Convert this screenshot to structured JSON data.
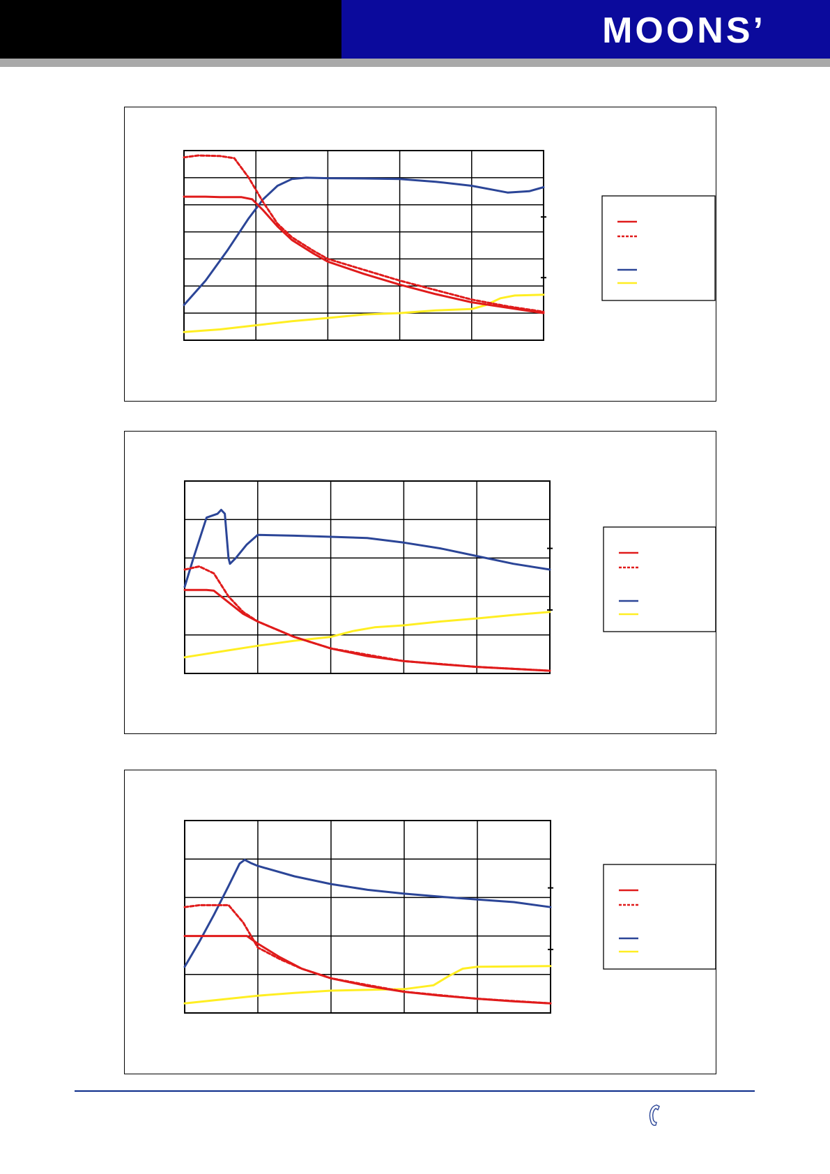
{
  "header": {
    "logo_text": "MOONS’",
    "colors": {
      "left_band": "#000000",
      "right_band": "#0b0a9c",
      "stripe": "#a9a9a9"
    }
  },
  "footer": {
    "icon": "phone-icon",
    "line_color": "#0a2a8a"
  },
  "series_colors": {
    "torque_solid": "#e01b1b",
    "torque_dashed": "#e01b1b",
    "power": "#2b4597",
    "current": "#ffee22"
  },
  "chart_data": [
    {
      "type": "line",
      "grid": true,
      "xlim": [
        0,
        5
      ],
      "ylim": [
        0,
        7
      ],
      "legend_placement": "right",
      "series": [
        {
          "style": "solid",
          "color": "#e01b1b",
          "points": [
            [
              0,
              5.3
            ],
            [
              0.3,
              5.3
            ],
            [
              0.5,
              5.28
            ],
            [
              0.8,
              5.28
            ],
            [
              0.95,
              5.2
            ],
            [
              1.1,
              4.8
            ],
            [
              1.3,
              4.2
            ],
            [
              1.5,
              3.7
            ],
            [
              1.8,
              3.2
            ],
            [
              2.0,
              2.9
            ],
            [
              2.5,
              2.45
            ],
            [
              3.0,
              2.05
            ],
            [
              3.5,
              1.7
            ],
            [
              4.0,
              1.4
            ],
            [
              4.5,
              1.2
            ],
            [
              5.0,
              1.0
            ]
          ]
        },
        {
          "style": "dashed",
          "color": "#e01b1b",
          "points": [
            [
              0,
              6.75
            ],
            [
              0.2,
              6.82
            ],
            [
              0.5,
              6.8
            ],
            [
              0.7,
              6.72
            ],
            [
              0.9,
              6.0
            ],
            [
              1.1,
              5.1
            ],
            [
              1.3,
              4.3
            ],
            [
              1.5,
              3.8
            ],
            [
              1.8,
              3.3
            ],
            [
              2.0,
              3.0
            ],
            [
              2.5,
              2.6
            ],
            [
              3.0,
              2.2
            ],
            [
              3.5,
              1.85
            ],
            [
              4.0,
              1.5
            ],
            [
              4.5,
              1.25
            ],
            [
              5.0,
              1.05
            ]
          ]
        },
        {
          "style": "solid",
          "color": "#2b4597",
          "points": [
            [
              0,
              1.3
            ],
            [
              0.3,
              2.2
            ],
            [
              0.6,
              3.3
            ],
            [
              0.9,
              4.5
            ],
            [
              1.1,
              5.2
            ],
            [
              1.3,
              5.7
            ],
            [
              1.5,
              5.95
            ],
            [
              1.7,
              6.0
            ],
            [
              2.0,
              5.98
            ],
            [
              2.5,
              5.97
            ],
            [
              3.0,
              5.95
            ],
            [
              3.5,
              5.85
            ],
            [
              4.0,
              5.7
            ],
            [
              4.3,
              5.55
            ],
            [
              4.5,
              5.45
            ],
            [
              4.8,
              5.5
            ],
            [
              5.0,
              5.65
            ]
          ]
        },
        {
          "style": "solid",
          "color": "#ffee22",
          "points": [
            [
              0,
              0.3
            ],
            [
              0.5,
              0.4
            ],
            [
              1.0,
              0.55
            ],
            [
              1.5,
              0.7
            ],
            [
              2.0,
              0.82
            ],
            [
              2.5,
              0.95
            ],
            [
              3.0,
              1.0
            ],
            [
              3.5,
              1.1
            ],
            [
              4.0,
              1.15
            ],
            [
              4.2,
              1.3
            ],
            [
              4.4,
              1.55
            ],
            [
              4.6,
              1.65
            ],
            [
              5.0,
              1.68
            ]
          ]
        }
      ]
    },
    {
      "type": "line",
      "grid": true,
      "xlim": [
        0,
        5
      ],
      "ylim": [
        0,
        5
      ],
      "legend_placement": "right",
      "series": [
        {
          "style": "solid",
          "color": "#e01b1b",
          "points": [
            [
              0,
              2.17
            ],
            [
              0.3,
              2.17
            ],
            [
              0.4,
              2.15
            ],
            [
              0.6,
              1.85
            ],
            [
              0.8,
              1.55
            ],
            [
              1.0,
              1.35
            ],
            [
              1.5,
              0.95
            ],
            [
              2.0,
              0.65
            ],
            [
              2.5,
              0.45
            ],
            [
              3.0,
              0.32
            ],
            [
              3.5,
              0.24
            ],
            [
              4.0,
              0.17
            ],
            [
              4.5,
              0.12
            ],
            [
              5.0,
              0.07
            ]
          ]
        },
        {
          "style": "dashed",
          "color": "#e01b1b",
          "points": [
            [
              0,
              2.7
            ],
            [
              0.2,
              2.78
            ],
            [
              0.4,
              2.6
            ],
            [
              0.6,
              2.0
            ],
            [
              0.8,
              1.6
            ],
            [
              1.0,
              1.35
            ],
            [
              1.5,
              0.95
            ],
            [
              2.0,
              0.65
            ],
            [
              3.0,
              0.32
            ],
            [
              4.0,
              0.17
            ],
            [
              5.0,
              0.07
            ]
          ]
        },
        {
          "style": "solid",
          "color": "#2b4597",
          "points": [
            [
              0,
              2.25
            ],
            [
              0.12,
              3.0
            ],
            [
              0.3,
              4.05
            ],
            [
              0.45,
              4.15
            ],
            [
              0.5,
              4.25
            ],
            [
              0.55,
              4.15
            ],
            [
              0.6,
              3.0
            ],
            [
              0.62,
              2.85
            ],
            [
              0.7,
              3.0
            ],
            [
              0.85,
              3.35
            ],
            [
              1.0,
              3.6
            ],
            [
              1.5,
              3.58
            ],
            [
              2.0,
              3.55
            ],
            [
              2.5,
              3.52
            ],
            [
              3.0,
              3.4
            ],
            [
              3.5,
              3.25
            ],
            [
              4.0,
              3.05
            ],
            [
              4.5,
              2.85
            ],
            [
              5.0,
              2.7
            ]
          ]
        },
        {
          "style": "solid",
          "color": "#ffee22",
          "points": [
            [
              0,
              0.42
            ],
            [
              0.5,
              0.57
            ],
            [
              1.0,
              0.72
            ],
            [
              1.5,
              0.85
            ],
            [
              2.0,
              0.95
            ],
            [
              2.3,
              1.1
            ],
            [
              2.6,
              1.2
            ],
            [
              3.0,
              1.25
            ],
            [
              3.5,
              1.35
            ],
            [
              4.0,
              1.43
            ],
            [
              4.5,
              1.52
            ],
            [
              5.0,
              1.6
            ]
          ]
        }
      ]
    },
    {
      "type": "line",
      "grid": true,
      "xlim": [
        0,
        5
      ],
      "ylim": [
        0,
        5
      ],
      "legend_placement": "right",
      "series": [
        {
          "style": "solid",
          "color": "#e01b1b",
          "points": [
            [
              0,
              2.0
            ],
            [
              0.5,
              2.0
            ],
            [
              0.85,
              2.0
            ],
            [
              1.0,
              1.8
            ],
            [
              1.3,
              1.45
            ],
            [
              1.6,
              1.15
            ],
            [
              2.0,
              0.9
            ],
            [
              2.5,
              0.7
            ],
            [
              3.0,
              0.55
            ],
            [
              3.5,
              0.45
            ],
            [
              4.0,
              0.37
            ],
            [
              4.5,
              0.3
            ],
            [
              5.0,
              0.25
            ]
          ]
        },
        {
          "style": "dashed",
          "color": "#e01b1b",
          "points": [
            [
              0,
              2.75
            ],
            [
              0.2,
              2.8
            ],
            [
              0.6,
              2.8
            ],
            [
              0.8,
              2.35
            ],
            [
              1.0,
              1.7
            ],
            [
              1.3,
              1.4
            ],
            [
              1.6,
              1.15
            ],
            [
              2.0,
              0.9
            ],
            [
              3.0,
              0.55
            ],
            [
              4.0,
              0.37
            ],
            [
              5.0,
              0.25
            ]
          ]
        },
        {
          "style": "solid",
          "color": "#2b4597",
          "points": [
            [
              0,
              1.2
            ],
            [
              0.2,
              1.85
            ],
            [
              0.4,
              2.55
            ],
            [
              0.6,
              3.3
            ],
            [
              0.75,
              3.88
            ],
            [
              0.82,
              3.98
            ],
            [
              0.9,
              3.9
            ],
            [
              1.0,
              3.82
            ],
            [
              1.5,
              3.55
            ],
            [
              2.0,
              3.35
            ],
            [
              2.5,
              3.2
            ],
            [
              3.0,
              3.1
            ],
            [
              3.5,
              3.02
            ],
            [
              4.0,
              2.95
            ],
            [
              4.5,
              2.88
            ],
            [
              5.0,
              2.75
            ]
          ]
        },
        {
          "style": "solid",
          "color": "#ffee22",
          "points": [
            [
              0,
              0.25
            ],
            [
              0.5,
              0.35
            ],
            [
              1.0,
              0.45
            ],
            [
              1.5,
              0.52
            ],
            [
              2.0,
              0.58
            ],
            [
              2.5,
              0.6
            ],
            [
              3.0,
              0.62
            ],
            [
              3.4,
              0.72
            ],
            [
              3.6,
              0.95
            ],
            [
              3.8,
              1.15
            ],
            [
              4.0,
              1.2
            ],
            [
              5.0,
              1.22
            ]
          ]
        }
      ]
    }
  ]
}
